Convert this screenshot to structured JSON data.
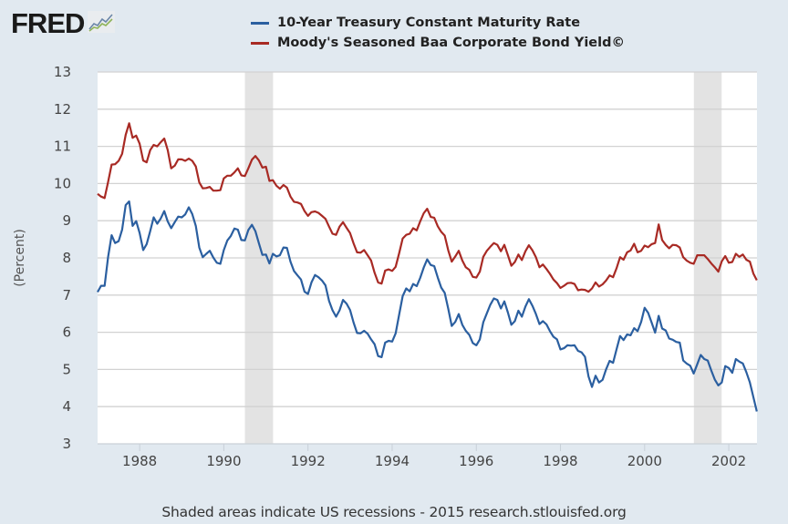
{
  "brand": {
    "name": "FRED",
    "icon": "line-chart-icon"
  },
  "chart_data": {
    "type": "line",
    "title": "",
    "xlabel": "",
    "ylabel": "(Percent)",
    "ylim": [
      3,
      13
    ],
    "xlim": [
      1987.0,
      2002.67
    ],
    "yticks": [
      "3",
      "4",
      "5",
      "6",
      "7",
      "8",
      "9",
      "10",
      "11",
      "12",
      "13"
    ],
    "xticks": [
      "1988",
      "1990",
      "1992",
      "1994",
      "1996",
      "1998",
      "2000",
      "2002"
    ],
    "grid": true,
    "legend_position": "top-center",
    "recessions": [
      {
        "start": 1990.5,
        "end": 1991.17
      },
      {
        "start": 2001.17,
        "end": 2001.83
      }
    ],
    "x_start": 1987.0,
    "x_step_months": 1,
    "series": [
      {
        "name": "10-Year Treasury Constant Maturity Rate",
        "color": "#2b5fa0",
        "values": [
          7.08,
          7.25,
          7.25,
          8.02,
          8.61,
          8.4,
          8.45,
          8.76,
          9.42,
          9.52,
          8.86,
          8.99,
          8.67,
          8.21,
          8.37,
          8.72,
          9.09,
          8.92,
          9.06,
          9.26,
          8.98,
          8.8,
          8.96,
          9.11,
          9.09,
          9.17,
          9.36,
          9.18,
          8.86,
          8.28,
          8.02,
          8.11,
          8.19,
          8.01,
          7.87,
          7.84,
          8.21,
          8.47,
          8.59,
          8.79,
          8.76,
          8.48,
          8.47,
          8.75,
          8.89,
          8.72,
          8.39,
          8.08,
          8.09,
          7.85,
          8.11,
          8.04,
          8.07,
          8.28,
          8.27,
          7.9,
          7.65,
          7.53,
          7.42,
          7.09,
          7.03,
          7.34,
          7.54,
          7.48,
          7.39,
          7.26,
          6.84,
          6.59,
          6.42,
          6.59,
          6.87,
          6.77,
          6.6,
          6.26,
          5.98,
          5.97,
          6.04,
          5.96,
          5.81,
          5.68,
          5.36,
          5.33,
          5.72,
          5.77,
          5.75,
          5.97,
          6.48,
          6.97,
          7.18,
          7.1,
          7.3,
          7.24,
          7.46,
          7.74,
          7.96,
          7.81,
          7.78,
          7.47,
          7.2,
          7.06,
          6.63,
          6.17,
          6.28,
          6.49,
          6.2,
          6.04,
          5.93,
          5.71,
          5.65,
          5.81,
          6.27,
          6.51,
          6.74,
          6.91,
          6.87,
          6.64,
          6.83,
          6.53,
          6.2,
          6.3,
          6.58,
          6.42,
          6.69,
          6.89,
          6.71,
          6.49,
          6.22,
          6.3,
          6.21,
          6.03,
          5.88,
          5.81,
          5.54,
          5.57,
          5.65,
          5.64,
          5.65,
          5.5,
          5.46,
          5.34,
          4.81,
          4.53,
          4.83,
          4.65,
          4.72,
          5.0,
          5.23,
          5.18,
          5.54,
          5.9,
          5.79,
          5.94,
          5.92,
          6.11,
          6.03,
          6.28,
          6.66,
          6.52,
          6.26,
          5.99,
          6.44,
          6.1,
          6.05,
          5.83,
          5.8,
          5.74,
          5.72,
          5.24,
          5.16,
          5.1,
          4.89,
          5.14,
          5.39,
          5.28,
          5.24,
          4.97,
          4.73,
          4.57,
          4.65,
          5.09,
          5.04,
          4.91,
          5.28,
          5.21,
          5.16,
          4.93,
          4.65,
          4.26,
          3.87
        ]
      },
      {
        "name": "Moody's Seasoned Baa Corporate Bond Yield©",
        "color": "#a82a24",
        "values": [
          9.72,
          9.65,
          9.61,
          10.04,
          10.51,
          10.52,
          10.61,
          10.8,
          11.31,
          11.62,
          11.23,
          11.29,
          11.07,
          10.62,
          10.57,
          10.9,
          11.04,
          11.0,
          11.11,
          11.21,
          10.9,
          10.41,
          10.48,
          10.65,
          10.65,
          10.61,
          10.67,
          10.61,
          10.46,
          10.03,
          9.87,
          9.88,
          9.91,
          9.81,
          9.81,
          9.82,
          10.14,
          10.21,
          10.21,
          10.3,
          10.41,
          10.22,
          10.2,
          10.41,
          10.64,
          10.74,
          10.62,
          10.43,
          10.45,
          10.07,
          10.09,
          9.94,
          9.86,
          9.96,
          9.89,
          9.65,
          9.51,
          9.49,
          9.45,
          9.26,
          9.13,
          9.23,
          9.25,
          9.21,
          9.13,
          9.05,
          8.84,
          8.65,
          8.62,
          8.84,
          8.96,
          8.81,
          8.67,
          8.39,
          8.15,
          8.14,
          8.21,
          8.07,
          7.93,
          7.6,
          7.34,
          7.31,
          7.66,
          7.69,
          7.65,
          7.76,
          8.13,
          8.52,
          8.62,
          8.65,
          8.8,
          8.74,
          8.98,
          9.2,
          9.32,
          9.1,
          9.08,
          8.85,
          8.7,
          8.6,
          8.2,
          7.9,
          8.04,
          8.19,
          7.93,
          7.75,
          7.68,
          7.49,
          7.47,
          7.63,
          8.03,
          8.19,
          8.3,
          8.4,
          8.35,
          8.18,
          8.35,
          8.07,
          7.79,
          7.89,
          8.09,
          7.94,
          8.18,
          8.34,
          8.2,
          8.02,
          7.75,
          7.82,
          7.7,
          7.57,
          7.42,
          7.32,
          7.19,
          7.25,
          7.32,
          7.33,
          7.3,
          7.13,
          7.15,
          7.14,
          7.09,
          7.18,
          7.34,
          7.23,
          7.29,
          7.39,
          7.53,
          7.48,
          7.72,
          8.02,
          7.95,
          8.15,
          8.2,
          8.38,
          8.15,
          8.19,
          8.33,
          8.29,
          8.37,
          8.4,
          8.9,
          8.48,
          8.35,
          8.26,
          8.35,
          8.34,
          8.28,
          8.02,
          7.93,
          7.87,
          7.84,
          8.07,
          8.07,
          8.07,
          7.97,
          7.85,
          7.75,
          7.63,
          7.91,
          8.05,
          7.87,
          7.89,
          8.11,
          8.03,
          8.09,
          7.95,
          7.9,
          7.58,
          7.4
        ]
      }
    ]
  },
  "footer": "Shaded areas indicate US recessions - 2015 research.stlouisfed.org"
}
